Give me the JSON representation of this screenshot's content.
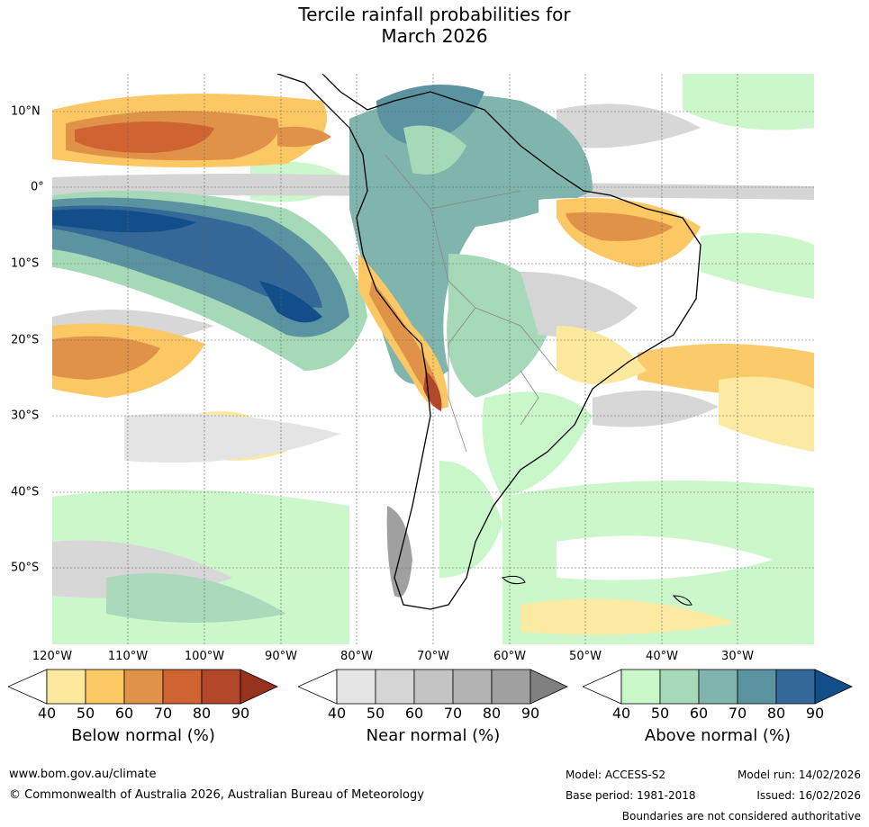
{
  "title": {
    "line1": "Tercile rainfall probabilities for",
    "line2": "March 2026"
  },
  "lat_labels": [
    "10°N",
    "0°",
    "10°S",
    "20°S",
    "30°S",
    "40°S",
    "50°S"
  ],
  "lon_labels": [
    "120°W",
    "110°W",
    "100°W",
    "90°W",
    "80°W",
    "70°W",
    "60°W",
    "50°W",
    "40°W",
    "30°W"
  ],
  "colorbars": [
    {
      "title": "Below normal (%)",
      "ticks": [
        "40",
        "50",
        "60",
        "70",
        "80",
        "90"
      ],
      "colors": [
        "#ffffff",
        "#fde99e",
        "#fbc863",
        "#e19249",
        "#cf6432",
        "#b3472a",
        "#97321f"
      ]
    },
    {
      "title": "Near normal (%)",
      "ticks": [
        "40",
        "50",
        "60",
        "70",
        "80",
        "90"
      ],
      "colors": [
        "#ffffff",
        "#e4e4e4",
        "#d5d5d5",
        "#c4c4c4",
        "#b3b3b3",
        "#a0a0a0",
        "#808080"
      ]
    },
    {
      "title": "Above normal (%)",
      "ticks": [
        "40",
        "50",
        "60",
        "70",
        "80",
        "90"
      ],
      "colors": [
        "#ffffff",
        "#c9f7c9",
        "#a6d9b8",
        "#7fb5ad",
        "#5b94a0",
        "#336898",
        "#124e8a"
      ]
    }
  ],
  "footer": {
    "website": "www.bom.gov.au/climate",
    "copyright": "© Commonwealth of Australia 2026, Australian Bureau of Meteorology",
    "model": "Model: ACCESS-S2",
    "base_period": "Base period: 1981-2018",
    "model_run": "Model run: 14/02/2026",
    "issued": "Issued: 16/02/2026",
    "disclaimer": "Boundaries are not considered authoritative"
  }
}
